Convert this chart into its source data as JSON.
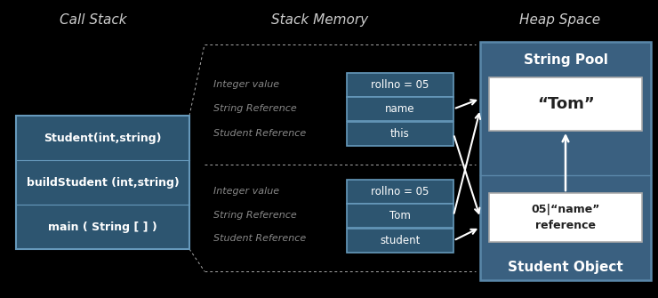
{
  "bg_color": "#000000",
  "title_color": "#cccccc",
  "call_stack_title": "Call Stack",
  "stack_memory_title": "Stack Memory",
  "heap_space_title": "Heap Space",
  "call_stack_labels": [
    "Student(int,string)",
    "buildStudent (int,string)",
    "main ( String [ ] )"
  ],
  "call_stack_box_color": "#2d5570",
  "call_stack_box_edge": "#6699bb",
  "call_stack_text_color": "#ffffff",
  "stack_upper_labels": [
    "Integer value",
    "String Reference",
    "Student Reference"
  ],
  "stack_upper_cells": [
    "rollno = 05",
    "name",
    "this"
  ],
  "stack_lower_labels": [
    "Integer value",
    "String Reference",
    "Student Reference"
  ],
  "stack_lower_cells": [
    "rollno = 05",
    "Tom",
    "student"
  ],
  "stack_cell_color": "#2d5570",
  "stack_cell_edge": "#6699bb",
  "stack_label_color": "#888888",
  "heap_outer_color": "#3a6080",
  "heap_outer_edge": "#5a88aa",
  "string_pool_label": "String Pool",
  "string_pool_text": "“Tom”",
  "string_pool_box_color": "#ffffff",
  "string_pool_text_color": "#222222",
  "student_object_label": "Student Object",
  "student_object_text": "05|“name”\nreference",
  "student_object_box_color": "#ffffff",
  "student_object_text_color": "#222222",
  "heap_text_color": "#ffffff",
  "dashed_line_color": "#aaaaaa",
  "arrow_color": "#ffffff",
  "title_fontsize": 11,
  "label_fontsize": 8,
  "cell_fontsize": 8.5
}
